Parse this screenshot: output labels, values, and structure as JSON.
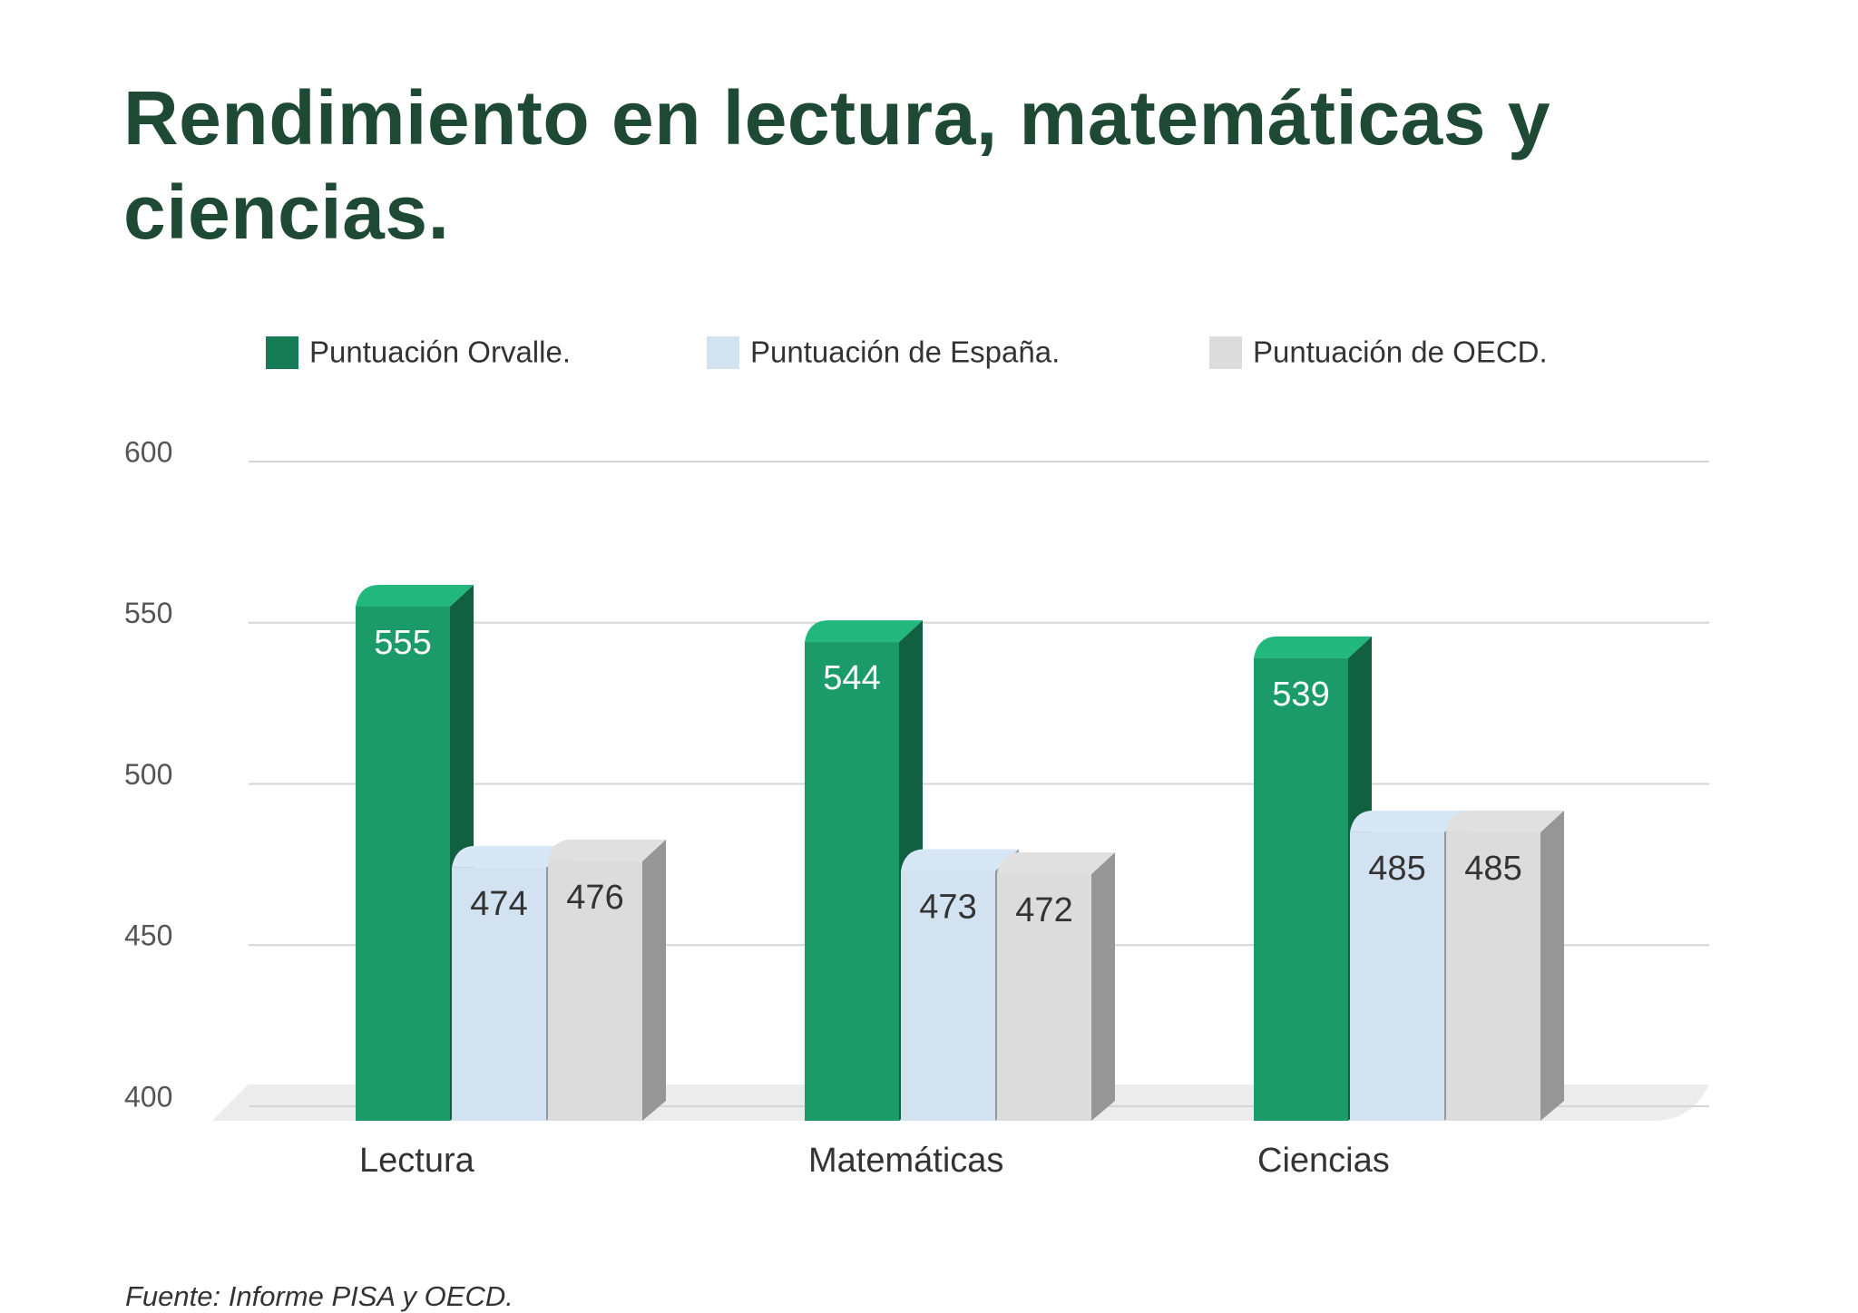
{
  "chart_data": {
    "type": "bar3d",
    "title": "Rendimiento en lectura, matemáticas y ciencias.",
    "categories": [
      "Lectura",
      "Matemáticas",
      "Ciencias"
    ],
    "series": [
      {
        "name": "Puntuación Orvalle.",
        "color": "#1c9b6a",
        "values": [
          555,
          544,
          539
        ]
      },
      {
        "name": "Puntuación de España.",
        "color": "#d3e2f0",
        "values": [
          474,
          473,
          485
        ]
      },
      {
        "name": "Puntuación de OECD.",
        "color": "#dcdcdc",
        "values": [
          476,
          472,
          485
        ]
      }
    ],
    "ylim": [
      400,
      600
    ],
    "yticks": [
      400,
      450,
      500,
      550,
      600
    ],
    "grid": true,
    "legend": "top",
    "source": "Fuente: Informe PISA y OECD."
  }
}
